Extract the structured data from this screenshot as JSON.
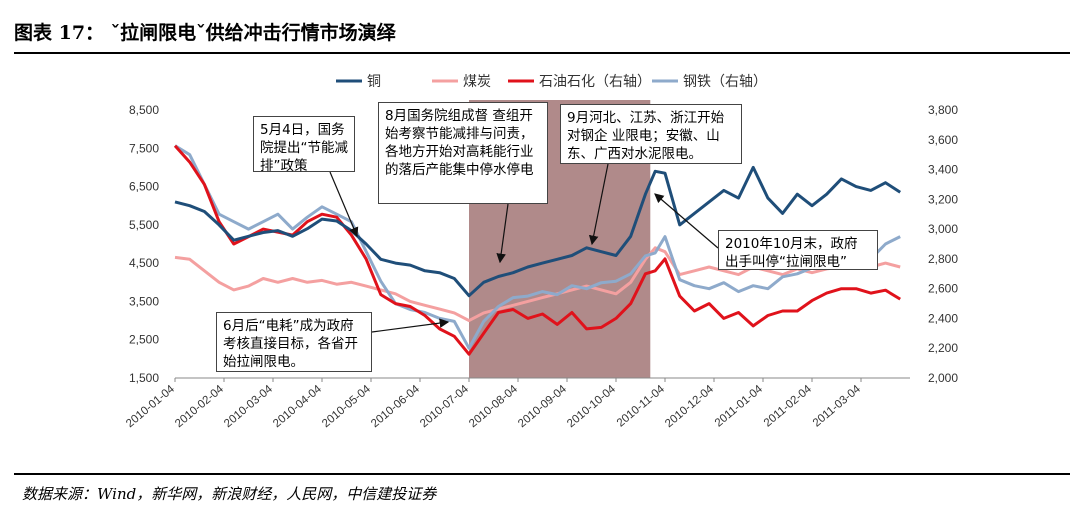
{
  "figure": {
    "title": "图表 17：  ˇ拉闸限电ˇ供给冲击行情市场演绎",
    "source": "数据来源：Wind，新华网，新浪财经，人民网，中信建投证券"
  },
  "annotations": [
    {
      "id": "a1",
      "text": "5月4日，国务院提出“节能减排”政策"
    },
    {
      "id": "a2",
      "text": "8月国务院组成督 查组开始考察节能减排与问责，各地方开始对高耗能行业的落后产能集中停水停电"
    },
    {
      "id": "a3",
      "text": "9月河北、江苏、浙江开始对钢企 业限电；安徽、山东、广西对水泥限电。"
    },
    {
      "id": "a4",
      "text": "6月后“电耗”成为政府考核直接目标，各省开始拉闸限电。"
    },
    {
      "id": "a5",
      "text": "2010年10月末，政府出手叫停“拉闸限电”"
    }
  ],
  "colors": {
    "copper": "#1f4e79",
    "coal": "#f4a0a0",
    "sinopec": "#e0121b",
    "steel": "#8eaacb",
    "shade": "#b08a8a",
    "axis": "#888888"
  },
  "chart_data": {
    "type": "line",
    "title": "",
    "xlabel": "",
    "ylabel": "",
    "ylim": [
      1500,
      8500
    ],
    "y2lim": [
      2000,
      3800
    ],
    "yticks": [
      1500,
      2500,
      3500,
      4500,
      5500,
      6500,
      7500,
      8500
    ],
    "yticklabels": [
      "1,500",
      "2,500",
      "3,500",
      "4,500",
      "5,500",
      "6,500",
      "7,500",
      "8,500"
    ],
    "y2ticks": [
      2000,
      2200,
      2400,
      2600,
      2800,
      3000,
      3200,
      3400,
      3600,
      3800
    ],
    "y2ticklabels": [
      "2,000",
      "2,200",
      "2,400",
      "2,600",
      "2,800",
      "3,000",
      "3,200",
      "3,400",
      "3,600",
      "3,800"
    ],
    "x_range": [
      0,
      15
    ],
    "xticks": [
      0,
      1,
      2,
      3,
      4,
      5,
      6,
      7,
      8,
      9,
      10,
      11,
      12,
      13,
      14
    ],
    "xticklabels": [
      "2010-01-04",
      "2010-02-04",
      "2010-03-04",
      "2010-04-04",
      "2010-05-04",
      "2010-06-04",
      "2010-07-04",
      "2010-08-04",
      "2010-09-04",
      "2010-10-04",
      "2010-11-04",
      "2010-12-04",
      "2011-01-04",
      "2011-02-04",
      "2011-03-04"
    ],
    "shaded_range": [
      6.0,
      9.7
    ],
    "legend": {
      "position": "top",
      "entries": [
        "铜",
        "煤炭",
        "石油石化（右轴）",
        "钢铁（右轴）"
      ]
    },
    "series": [
      {
        "name": "铜",
        "axis": "left",
        "color_key": "copper",
        "x": [
          0,
          0.3,
          0.6,
          0.9,
          1.2,
          1.5,
          1.8,
          2.1,
          2.4,
          2.7,
          3.0,
          3.3,
          3.6,
          3.9,
          4.2,
          4.5,
          4.8,
          5.1,
          5.4,
          5.7,
          6.0,
          6.3,
          6.6,
          6.9,
          7.2,
          7.5,
          7.8,
          8.1,
          8.4,
          8.7,
          9.0,
          9.3,
          9.6,
          9.8,
          10.0,
          10.3,
          10.6,
          10.9,
          11.2,
          11.5,
          11.8,
          12.1,
          12.4,
          12.7,
          13.0,
          13.3,
          13.6,
          13.9,
          14.2,
          14.5,
          14.8
        ],
        "values": [
          6100,
          6000,
          5850,
          5500,
          5100,
          5200,
          5300,
          5350,
          5200,
          5400,
          5650,
          5600,
          5350,
          5000,
          4600,
          4500,
          4450,
          4300,
          4250,
          4100,
          3650,
          4000,
          4150,
          4250,
          4400,
          4500,
          4600,
          4700,
          4900,
          4800,
          4700,
          5200,
          6300,
          6900,
          6850,
          5500,
          5800,
          6100,
          6400,
          6200,
          7000,
          6200,
          5800,
          6300,
          6000,
          6300,
          6700,
          6500,
          6400,
          6600,
          6350
        ]
      },
      {
        "name": "煤炭",
        "axis": "left",
        "color_key": "coal",
        "x": [
          0,
          0.3,
          0.6,
          0.9,
          1.2,
          1.5,
          1.8,
          2.1,
          2.4,
          2.7,
          3.0,
          3.3,
          3.6,
          3.9,
          4.2,
          4.5,
          4.8,
          5.1,
          5.4,
          5.7,
          6.0,
          6.3,
          6.6,
          6.9,
          7.2,
          7.5,
          7.8,
          8.1,
          8.4,
          8.7,
          9.0,
          9.3,
          9.6,
          9.8,
          10.0,
          10.3,
          10.6,
          10.9,
          11.2,
          11.5,
          11.8,
          12.1,
          12.4,
          12.7,
          13.0,
          13.3,
          13.6,
          13.9,
          14.2,
          14.5,
          14.8
        ],
        "values": [
          4650,
          4600,
          4300,
          4000,
          3800,
          3900,
          4100,
          4000,
          4100,
          4000,
          4050,
          3950,
          4000,
          3900,
          3800,
          3700,
          3500,
          3400,
          3300,
          3200,
          3000,
          3200,
          3300,
          3400,
          3500,
          3600,
          3700,
          3800,
          3900,
          3800,
          3700,
          4000,
          4600,
          4900,
          4800,
          4200,
          4300,
          4400,
          4300,
          4200,
          4400,
          4300,
          4200,
          4350,
          4250,
          4350,
          4400,
          4450,
          4400,
          4500,
          4400
        ]
      },
      {
        "name": "石油石化（右轴）",
        "axis": "right",
        "color_key": "sinopec",
        "x": [
          0,
          0.3,
          0.6,
          0.9,
          1.2,
          1.5,
          1.8,
          2.1,
          2.4,
          2.7,
          3.0,
          3.3,
          3.6,
          3.9,
          4.2,
          4.5,
          4.8,
          5.1,
          5.4,
          5.7,
          6.0,
          6.3,
          6.6,
          6.9,
          7.2,
          7.5,
          7.8,
          8.1,
          8.4,
          8.7,
          9.0,
          9.3,
          9.6,
          9.8,
          10.0,
          10.3,
          10.6,
          10.9,
          11.2,
          11.5,
          11.8,
          12.1,
          12.4,
          12.7,
          13.0,
          13.3,
          13.6,
          13.9,
          14.2,
          14.5,
          14.8
        ],
        "values": [
          3560,
          3450,
          3300,
          3050,
          2900,
          2950,
          3000,
          2980,
          2960,
          3050,
          3100,
          3080,
          2960,
          2800,
          2560,
          2500,
          2480,
          2420,
          2330,
          2280,
          2160,
          2300,
          2440,
          2460,
          2400,
          2430,
          2360,
          2440,
          2330,
          2340,
          2400,
          2500,
          2700,
          2720,
          2800,
          2550,
          2450,
          2500,
          2400,
          2440,
          2350,
          2420,
          2450,
          2450,
          2520,
          2570,
          2600,
          2600,
          2570,
          2590,
          2530
        ]
      },
      {
        "name": "钢铁（右轴）",
        "axis": "right",
        "color_key": "steel",
        "x": [
          0,
          0.3,
          0.6,
          0.9,
          1.2,
          1.5,
          1.8,
          2.1,
          2.4,
          2.7,
          3.0,
          3.3,
          3.6,
          3.9,
          4.2,
          4.5,
          4.8,
          5.1,
          5.4,
          5.7,
          6.0,
          6.3,
          6.6,
          6.9,
          7.2,
          7.5,
          7.8,
          8.1,
          8.4,
          8.7,
          9.0,
          9.3,
          9.6,
          9.8,
          10.0,
          10.3,
          10.6,
          10.9,
          11.2,
          11.5,
          11.8,
          12.1,
          12.4,
          12.7,
          13.0,
          13.3,
          13.6,
          13.9,
          14.2,
          14.5,
          14.8
        ],
        "values": [
          3560,
          3500,
          3300,
          3100,
          3050,
          3000,
          3050,
          3100,
          3000,
          3080,
          3150,
          3100,
          3050,
          2850,
          2650,
          2500,
          2460,
          2440,
          2400,
          2380,
          2200,
          2380,
          2480,
          2540,
          2550,
          2580,
          2560,
          2620,
          2600,
          2640,
          2650,
          2700,
          2820,
          2840,
          2950,
          2660,
          2620,
          2600,
          2640,
          2580,
          2620,
          2600,
          2680,
          2700,
          2740,
          2760,
          2850,
          2900,
          2800,
          2900,
          2950
        ]
      }
    ]
  }
}
